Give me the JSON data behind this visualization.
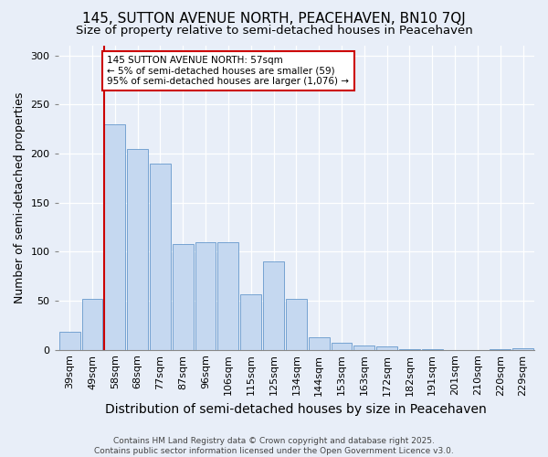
{
  "title": "145, SUTTON AVENUE NORTH, PEACEHAVEN, BN10 7QJ",
  "subtitle": "Size of property relative to semi-detached houses in Peacehaven",
  "xlabel": "Distribution of semi-detached houses by size in Peacehaven",
  "ylabel": "Number of semi-detached properties",
  "categories": [
    "39sqm",
    "49sqm",
    "58sqm",
    "68sqm",
    "77sqm",
    "87sqm",
    "96sqm",
    "106sqm",
    "115sqm",
    "125sqm",
    "134sqm",
    "144sqm",
    "153sqm",
    "163sqm",
    "172sqm",
    "182sqm",
    "191sqm",
    "201sqm",
    "210sqm",
    "220sqm",
    "229sqm"
  ],
  "values": [
    18,
    52,
    230,
    205,
    190,
    108,
    110,
    110,
    57,
    90,
    52,
    13,
    7,
    4,
    3,
    1,
    1,
    0,
    0,
    1,
    2
  ],
  "bar_color": "#c5d8f0",
  "bar_edge_color": "#6699cc",
  "property_line_color": "#cc0000",
  "property_line_bar_index": 2,
  "annotation_text": "145 SUTTON AVENUE NORTH: 57sqm\n← 5% of semi-detached houses are smaller (59)\n95% of semi-detached houses are larger (1,076) →",
  "annotation_box_facecolor": "#ffffff",
  "annotation_box_edgecolor": "#cc0000",
  "footnote": "Contains HM Land Registry data © Crown copyright and database right 2025.\nContains public sector information licensed under the Open Government Licence v3.0.",
  "ylim": [
    0,
    310
  ],
  "yticks": [
    0,
    50,
    100,
    150,
    200,
    250,
    300
  ],
  "background_color": "#e8eef8",
  "title_fontsize": 11,
  "subtitle_fontsize": 9.5,
  "xlabel_fontsize": 10,
  "ylabel_fontsize": 9,
  "tick_fontsize": 8,
  "footnote_fontsize": 6.5
}
